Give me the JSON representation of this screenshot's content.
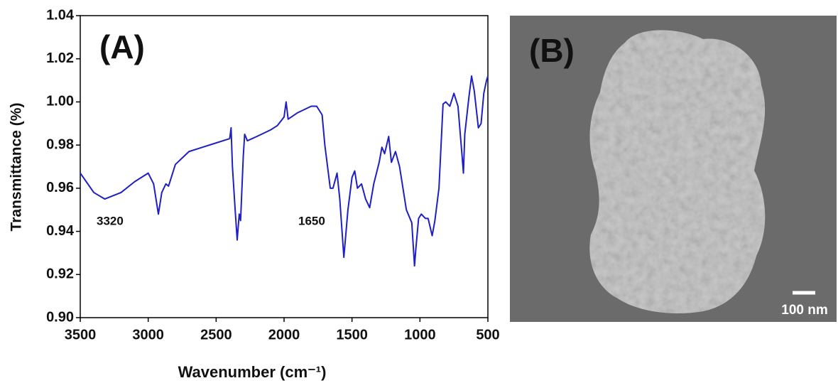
{
  "chart_data": {
    "type": "line",
    "x_label": "Wavenumber (cm⁻¹)",
    "y_label": "Transmittance (%)",
    "panel_label": "(A)",
    "annotations": [
      "3320",
      "1650"
    ],
    "color": "#1f1fc4",
    "x": [
      3500,
      3400,
      3320,
      3200,
      3100,
      3000,
      2960,
      2925,
      2900,
      2870,
      2850,
      2800,
      2700,
      2600,
      2500,
      2400,
      2390,
      2380,
      2360,
      2345,
      2330,
      2320,
      2300,
      2290,
      2270,
      2200,
      2100,
      2050,
      2000,
      1985,
      1970,
      1900,
      1800,
      1760,
      1720,
      1700,
      1660,
      1640,
      1610,
      1590,
      1560,
      1530,
      1500,
      1480,
      1460,
      1430,
      1400,
      1370,
      1340,
      1300,
      1280,
      1260,
      1230,
      1210,
      1180,
      1150,
      1100,
      1060,
      1040,
      1030,
      1010,
      990,
      960,
      940,
      910,
      890,
      860,
      830,
      810,
      780,
      750,
      720,
      690,
      680,
      670,
      640,
      620,
      600,
      570,
      550,
      530,
      510,
      500
    ],
    "values": [
      0.967,
      0.958,
      0.955,
      0.958,
      0.963,
      0.967,
      0.962,
      0.948,
      0.958,
      0.962,
      0.961,
      0.971,
      0.977,
      0.979,
      0.981,
      0.983,
      0.988,
      0.97,
      0.95,
      0.936,
      0.948,
      0.945,
      0.975,
      0.985,
      0.982,
      0.984,
      0.987,
      0.989,
      0.993,
      1.0,
      0.992,
      0.995,
      0.998,
      0.998,
      0.994,
      0.98,
      0.96,
      0.96,
      0.967,
      0.955,
      0.928,
      0.95,
      0.965,
      0.968,
      0.96,
      0.962,
      0.955,
      0.951,
      0.962,
      0.972,
      0.979,
      0.976,
      0.984,
      0.972,
      0.977,
      0.97,
      0.95,
      0.944,
      0.924,
      0.932,
      0.946,
      0.948,
      0.946,
      0.946,
      0.938,
      0.945,
      0.96,
      0.999,
      1.0,
      0.998,
      1.004,
      0.998,
      0.975,
      0.967,
      0.985,
      1.002,
      1.012,
      1.005,
      0.988,
      0.99,
      1.004,
      1.01,
      1.012
    ],
    "xlim": [
      3500,
      500
    ],
    "xticks": [
      3500,
      3000,
      2500,
      2000,
      1500,
      1000,
      500
    ],
    "ylim": [
      0.9,
      1.04
    ],
    "yticks": [
      {
        "value": 0.9,
        "label": "0.90"
      },
      0.92,
      0.94,
      0.96,
      0.98,
      {
        "value": 1.0,
        "label": "1.00"
      },
      1.02,
      1.04
    ]
  },
  "image_panel": {
    "panel_label": "(B)",
    "scale_bar_label": "100 nm"
  }
}
